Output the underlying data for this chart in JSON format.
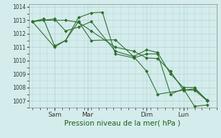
{
  "bg_color": "#d4ecec",
  "grid_color": "#b0d0d0",
  "line_color": "#2d6e2d",
  "marker_color": "#2d6e2d",
  "xlabel": "Pression niveau de la mer( hPa )",
  "xlabel_fontsize": 7.5,
  "ylim": [
    1006.5,
    1014.2
  ],
  "yticks": [
    1007,
    1008,
    1009,
    1010,
    1011,
    1012,
    1013,
    1014
  ],
  "xtick_labels": [
    "Sam",
    "Mar",
    "Dim",
    "Lun"
  ],
  "xtick_positions": [
    0.12,
    0.3,
    0.62,
    0.82
  ],
  "series": [
    [
      0.0,
      1012.9,
      0.06,
      1013.0,
      0.12,
      1013.0,
      0.18,
      1013.0,
      0.25,
      1012.85,
      0.32,
      1012.2,
      0.45,
      1011.0,
      0.55,
      1010.7,
      0.62,
      1010.2,
      0.68,
      1010.15,
      0.75,
      1009.2,
      0.82,
      1007.8,
      0.88,
      1007.9,
      0.95,
      1007.05
    ],
    [
      0.0,
      1012.9,
      0.06,
      1013.1,
      0.12,
      1011.1,
      0.18,
      1011.5,
      0.25,
      1013.2,
      0.32,
      1013.55,
      0.38,
      1013.6,
      0.45,
      1010.5,
      0.55,
      1010.2,
      0.62,
      1010.5,
      0.68,
      1010.5,
      0.75,
      1007.5,
      0.82,
      1007.9,
      0.88,
      1006.6,
      0.95,
      1006.7
    ],
    [
      0.0,
      1012.9,
      0.12,
      1011.0,
      0.18,
      1011.5,
      0.25,
      1012.9,
      0.32,
      1011.5,
      0.45,
      1011.55,
      0.55,
      1010.3,
      0.62,
      1009.2,
      0.68,
      1007.5,
      0.82,
      1007.8,
      0.88,
      1007.8,
      0.95,
      1007.0
    ],
    [
      0.0,
      1012.9,
      0.12,
      1013.1,
      0.18,
      1012.2,
      0.25,
      1012.5,
      0.32,
      1012.9,
      0.45,
      1010.7,
      0.55,
      1010.3,
      0.62,
      1010.8,
      0.68,
      1010.6,
      0.75,
      1009.0,
      0.82,
      1008.0,
      0.88,
      1008.0,
      0.95,
      1007.0
    ]
  ]
}
